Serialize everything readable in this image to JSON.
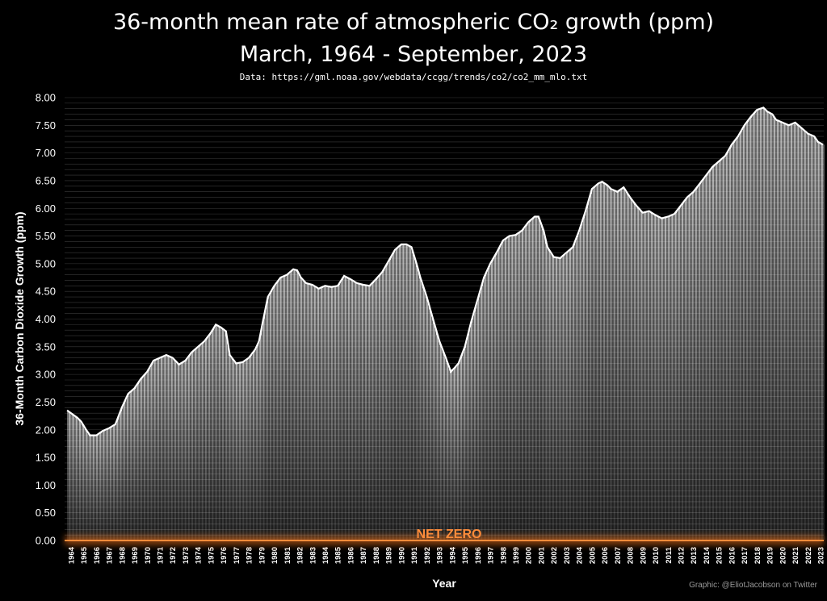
{
  "chart_data": {
    "type": "bar",
    "title": "36-month mean rate of atmospheric CO₂ growth (ppm)",
    "subtitle": "March, 1964 - September, 2023",
    "source": "Data: https://gml.noaa.gov/webdata/ccgg/trends/co2/co2_mm_mlo.txt",
    "xlabel": "Year",
    "ylabel": "36-Month Carbon Dioxide Growth (ppm)",
    "ylim": [
      0,
      8
    ],
    "yticks": [
      "0.00",
      "0.50",
      "1.00",
      "1.50",
      "2.00",
      "2.50",
      "3.00",
      "3.50",
      "4.00",
      "4.50",
      "5.00",
      "5.50",
      "6.00",
      "6.50",
      "7.00",
      "7.50",
      "8.00"
    ],
    "x_start": 1964,
    "x_end": 2023.75,
    "xticks": [
      "1964",
      "1965",
      "1966",
      "1967",
      "1968",
      "1969",
      "1970",
      "1971",
      "1972",
      "1973",
      "1974",
      "1975",
      "1976",
      "1977",
      "1978",
      "1979",
      "1980",
      "1981",
      "1982",
      "1983",
      "1984",
      "1985",
      "1986",
      "1987",
      "1988",
      "1989",
      "1990",
      "1991",
      "1992",
      "1993",
      "1994",
      "1995",
      "1996",
      "1997",
      "1998",
      "1999",
      "2000",
      "2001",
      "2002",
      "2003",
      "2004",
      "2005",
      "2006",
      "2007",
      "2008",
      "2009",
      "2010",
      "2011",
      "2012",
      "2013",
      "2014",
      "2015",
      "2016",
      "2017",
      "2018",
      "2019",
      "2020",
      "2021",
      "2022",
      "2023"
    ],
    "series": [
      {
        "x": [
          1964.2,
          1965.0,
          1965.3,
          1965.7,
          1966.0,
          1966.5,
          1967.0,
          1967.5,
          1968.0,
          1968.5,
          1969.0,
          1969.5,
          1970.0,
          1970.5,
          1971.0,
          1971.5,
          1972.0,
          1972.5,
          1973.0,
          1973.5,
          1974.0,
          1974.5,
          1975.0,
          1975.5,
          1975.9,
          1976.3,
          1976.7,
          1977.0,
          1977.5,
          1978.0,
          1978.5,
          1979.0,
          1979.3,
          1979.6,
          1980.0,
          1980.5,
          1981.0,
          1981.5,
          1982.0,
          1982.3,
          1982.6,
          1983.0,
          1983.5,
          1984.0,
          1984.5,
          1985.0,
          1985.5,
          1986.0,
          1986.5,
          1987.0,
          1987.5,
          1988.0,
          1988.5,
          1989.0,
          1989.5,
          1990.0,
          1990.5,
          1990.9,
          1991.3,
          1991.7,
          1992.0,
          1992.5,
          1993.0,
          1993.5,
          1994.0,
          1994.4,
          1994.7,
          1995.0,
          1995.5,
          1996.0,
          1996.5,
          1997.0,
          1997.5,
          1998.0,
          1998.5,
          1999.0,
          1999.5,
          2000.0,
          2000.5,
          2001.0,
          2001.3,
          2001.7,
          2002.0,
          2002.5,
          2003.0,
          2003.5,
          2004.0,
          2004.5,
          2005.0,
          2005.5,
          2006.0,
          2006.3,
          2006.7,
          2007.0,
          2007.5,
          2008.0,
          2008.5,
          2009.0,
          2009.5,
          2010.0,
          2010.5,
          2011.0,
          2011.5,
          2012.0,
          2012.5,
          2013.0,
          2013.5,
          2014.0,
          2014.5,
          2015.0,
          2015.5,
          2016.0,
          2016.5,
          2017.0,
          2017.5,
          2018.0,
          2018.5,
          2019.0,
          2019.3,
          2019.7,
          2020.0,
          2020.5,
          2021.0,
          2021.5,
          2022.0,
          2022.5,
          2023.0,
          2023.3,
          2023.7
        ],
        "values": [
          2.35,
          2.22,
          2.15,
          2.0,
          1.9,
          1.9,
          1.98,
          2.03,
          2.1,
          2.4,
          2.65,
          2.75,
          2.92,
          3.05,
          3.25,
          3.3,
          3.35,
          3.3,
          3.18,
          3.25,
          3.4,
          3.5,
          3.6,
          3.75,
          3.9,
          3.85,
          3.78,
          3.35,
          3.2,
          3.22,
          3.3,
          3.45,
          3.6,
          3.95,
          4.4,
          4.6,
          4.75,
          4.8,
          4.9,
          4.88,
          4.75,
          4.65,
          4.62,
          4.55,
          4.6,
          4.58,
          4.6,
          4.78,
          4.72,
          4.65,
          4.62,
          4.6,
          4.72,
          4.85,
          5.05,
          5.25,
          5.35,
          5.35,
          5.3,
          5.0,
          4.75,
          4.4,
          4.0,
          3.6,
          3.3,
          3.05,
          3.12,
          3.2,
          3.5,
          3.95,
          4.35,
          4.75,
          5.0,
          5.2,
          5.42,
          5.5,
          5.52,
          5.6,
          5.75,
          5.85,
          5.85,
          5.6,
          5.3,
          5.12,
          5.1,
          5.2,
          5.3,
          5.6,
          5.95,
          6.35,
          6.45,
          6.48,
          6.42,
          6.35,
          6.3,
          6.38,
          6.2,
          6.05,
          5.92,
          5.95,
          5.88,
          5.82,
          5.85,
          5.9,
          6.05,
          6.2,
          6.3,
          6.45,
          6.6,
          6.75,
          6.85,
          6.95,
          7.15,
          7.3,
          7.5,
          7.65,
          7.78,
          7.82,
          7.75,
          7.7,
          7.6,
          7.55,
          7.5,
          7.55,
          7.45,
          7.35,
          7.3,
          7.2,
          7.15
        ]
      }
    ],
    "annotation": "NET ZERO",
    "credit": "Graphic: @EliotJacobson on Twitter",
    "colors": {
      "background": "#000000",
      "bars": "#ffffff",
      "line": "#ffffff",
      "net_zero": "#ff8c3a"
    }
  }
}
